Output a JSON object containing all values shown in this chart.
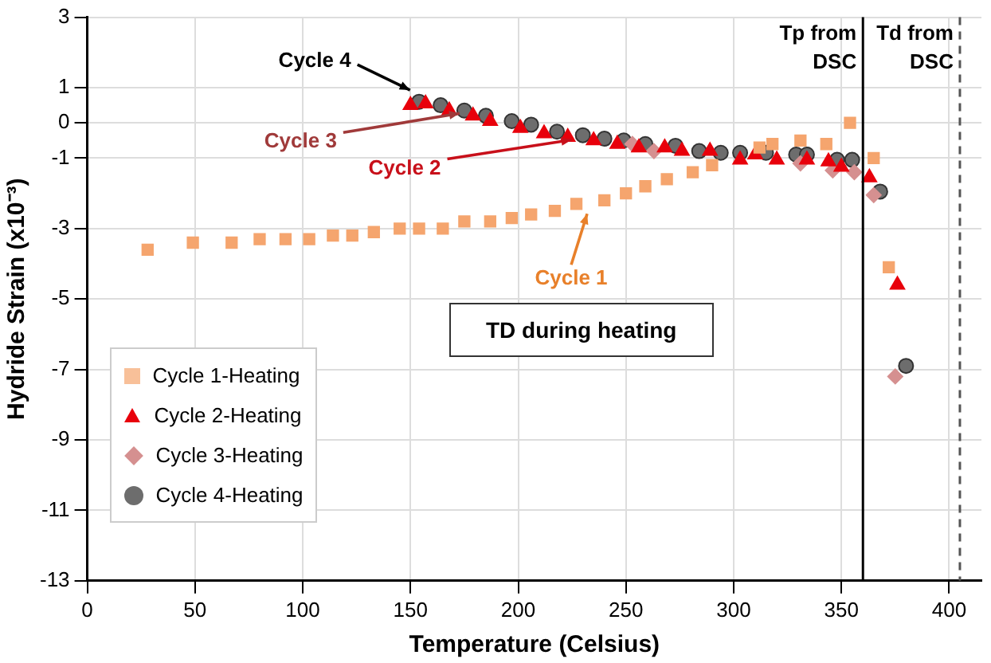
{
  "chart_data": {
    "type": "scatter",
    "xlabel": "Temperature (Celsius)",
    "ylabel": "Hydride Strain (x10⁻³)",
    "xlim": [
      0,
      415
    ],
    "xticks": [
      0,
      50,
      100,
      150,
      200,
      250,
      300,
      350,
      400
    ],
    "ylim": [
      -13,
      3
    ],
    "yticks": [
      3,
      1,
      0,
      -1,
      -3,
      -5,
      -7,
      -9,
      -11,
      -13
    ],
    "grid": true,
    "legend": "bottom left",
    "series": [
      {
        "name": "Cycle 1-Heating",
        "color": "#f5a56e",
        "marker": "square",
        "x": [
          28,
          49,
          67,
          80,
          92,
          103,
          114,
          123,
          133,
          145,
          154,
          165,
          175,
          187,
          197,
          206,
          217,
          227,
          240,
          250,
          259,
          269,
          281,
          290,
          312,
          318,
          331,
          343,
          354,
          365,
          372
        ],
        "values": [
          -3.6,
          -3.4,
          -3.4,
          -3.3,
          -3.3,
          -3.3,
          -3.2,
          -3.2,
          -3.1,
          -3,
          -3,
          -3,
          -2.8,
          -2.8,
          -2.7,
          -2.6,
          -2.5,
          -2.3,
          -2.2,
          -2,
          -1.8,
          -1.6,
          -1.4,
          -1.2,
          -0.7,
          -0.6,
          -0.5,
          -0.6,
          0,
          -1,
          -4.1
        ]
      },
      {
        "name": "Cycle 2-Heating",
        "color": "#e8000b",
        "marker": "triangle",
        "x": [
          150,
          157,
          168,
          179,
          187,
          201,
          212,
          223,
          235,
          246,
          256,
          268,
          276,
          289,
          303,
          310,
          320,
          334,
          344,
          350,
          363,
          376
        ],
        "values": [
          0.5,
          0.55,
          0.35,
          0.2,
          0.05,
          -0.15,
          -0.3,
          -0.4,
          -0.5,
          -0.6,
          -0.7,
          -0.7,
          -0.8,
          -0.8,
          -1.05,
          -0.9,
          -1.05,
          -1.05,
          -1.1,
          -1.25,
          -1.55,
          -4.6
        ]
      },
      {
        "name": "Cycle 3-Heating",
        "color": "#d59090",
        "marker": "diamond",
        "x": [
          253,
          263,
          331,
          346,
          356,
          365,
          375
        ],
        "values": [
          -0.6,
          -0.8,
          -1.15,
          -1.35,
          -1.4,
          -2.05,
          -7.2
        ]
      },
      {
        "name": "Cycle 4-Heating",
        "color": "#6d6d6d",
        "marker": "circle",
        "x": [
          154,
          164,
          175,
          185,
          197,
          206,
          218,
          230,
          240,
          249,
          259,
          273,
          284,
          294,
          303,
          315,
          329,
          334,
          348,
          355,
          368,
          380
        ],
        "values": [
          0.6,
          0.5,
          0.35,
          0.2,
          0.05,
          -0.05,
          -0.25,
          -0.35,
          -0.45,
          -0.5,
          -0.6,
          -0.65,
          -0.8,
          -0.85,
          -0.85,
          -0.85,
          -0.9,
          -0.9,
          -1.05,
          -1.05,
          -1.95,
          -6.9
        ]
      }
    ],
    "ref_lines": [
      {
        "axis": "x",
        "value": 360,
        "label": "Tp from DSC",
        "color": "#000000",
        "line_style": "solid"
      },
      {
        "axis": "x",
        "value": 405,
        "label": "Td from DSC",
        "color": "#555555",
        "line_style": "dashed"
      }
    ],
    "annotations": [
      {
        "text": "Cycle 4",
        "x": 152,
        "y": 0.75
      },
      {
        "text": "Cycle 3",
        "x": 175,
        "y": 0.45
      },
      {
        "text": "Cycle 2",
        "x": 227,
        "y": -0.3
      },
      {
        "text": "Cycle 1",
        "x": 232,
        "y": -2.4
      },
      "TD during heating"
    ]
  }
}
